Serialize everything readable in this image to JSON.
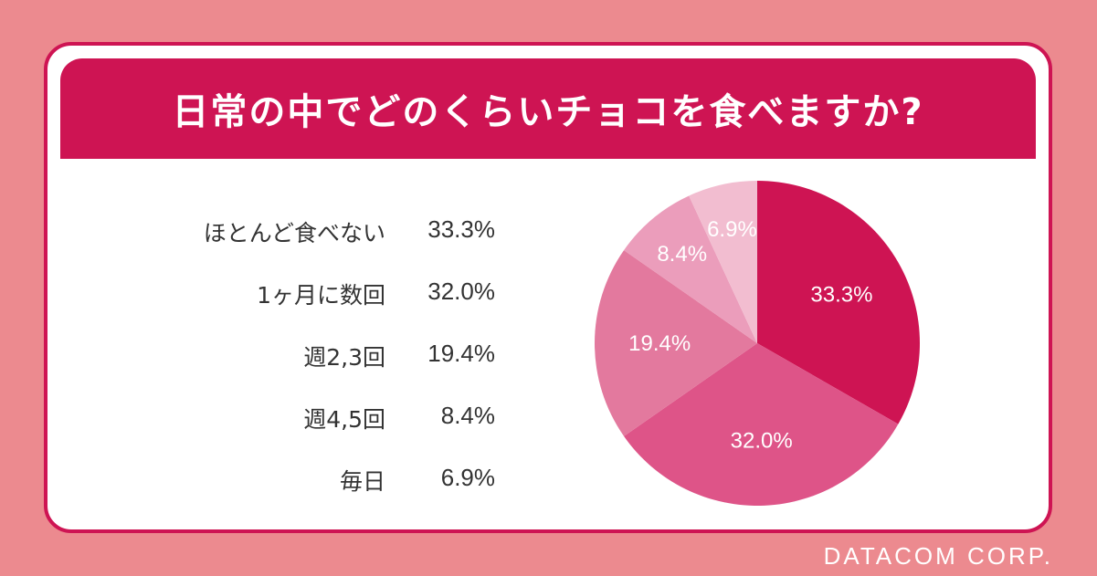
{
  "chart_data": {
    "type": "pie",
    "title": "日常の中でどのくらいチョコを食べますか?",
    "categories": [
      "ほとんど食べない",
      "1ヶ月に数回",
      "週2,3回",
      "週4,5回",
      "毎日"
    ],
    "values": [
      33.3,
      32.0,
      19.4,
      8.4,
      6.9
    ],
    "value_labels": [
      "33.3%",
      "32.0%",
      "19.4%",
      "8.4%",
      "6.9%"
    ],
    "colors": [
      "#ce1453",
      "#de5488",
      "#e3799e",
      "#eb9dbb",
      "#f2bdd0"
    ],
    "legend_placement": "left"
  },
  "brand": "DATACOM CORP."
}
